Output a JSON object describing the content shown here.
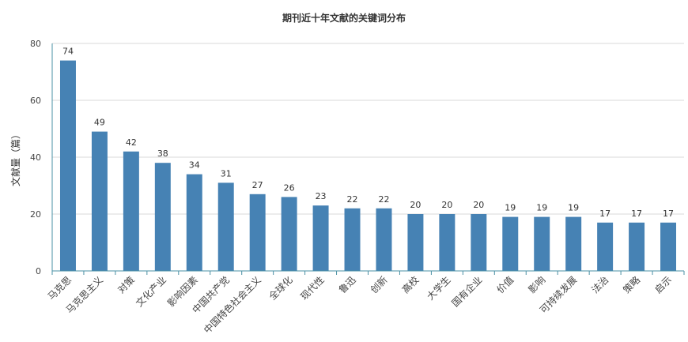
{
  "chart_data": {
    "type": "bar",
    "title": "期刊近十年文献的关键词分布",
    "xlabel": "",
    "ylabel": "文献量（篇）",
    "ylim": [
      0,
      80
    ],
    "yticks": [
      0,
      20,
      40,
      60,
      80
    ],
    "grid": true,
    "bar_color": "#4682b4",
    "categories": [
      "马克思",
      "马克思主义",
      "对策",
      "文化产业",
      "影响因素",
      "中国共产党",
      "中国特色社会主义",
      "全球化",
      "现代性",
      "鲁迅",
      "创新",
      "高校",
      "大学生",
      "国有企业",
      "价值",
      "影响",
      "可持续发展",
      "法治",
      "策略",
      "启示"
    ],
    "values": [
      74,
      49,
      42,
      38,
      34,
      31,
      27,
      26,
      23,
      22,
      22,
      20,
      20,
      20,
      19,
      19,
      19,
      17,
      17,
      17
    ]
  }
}
